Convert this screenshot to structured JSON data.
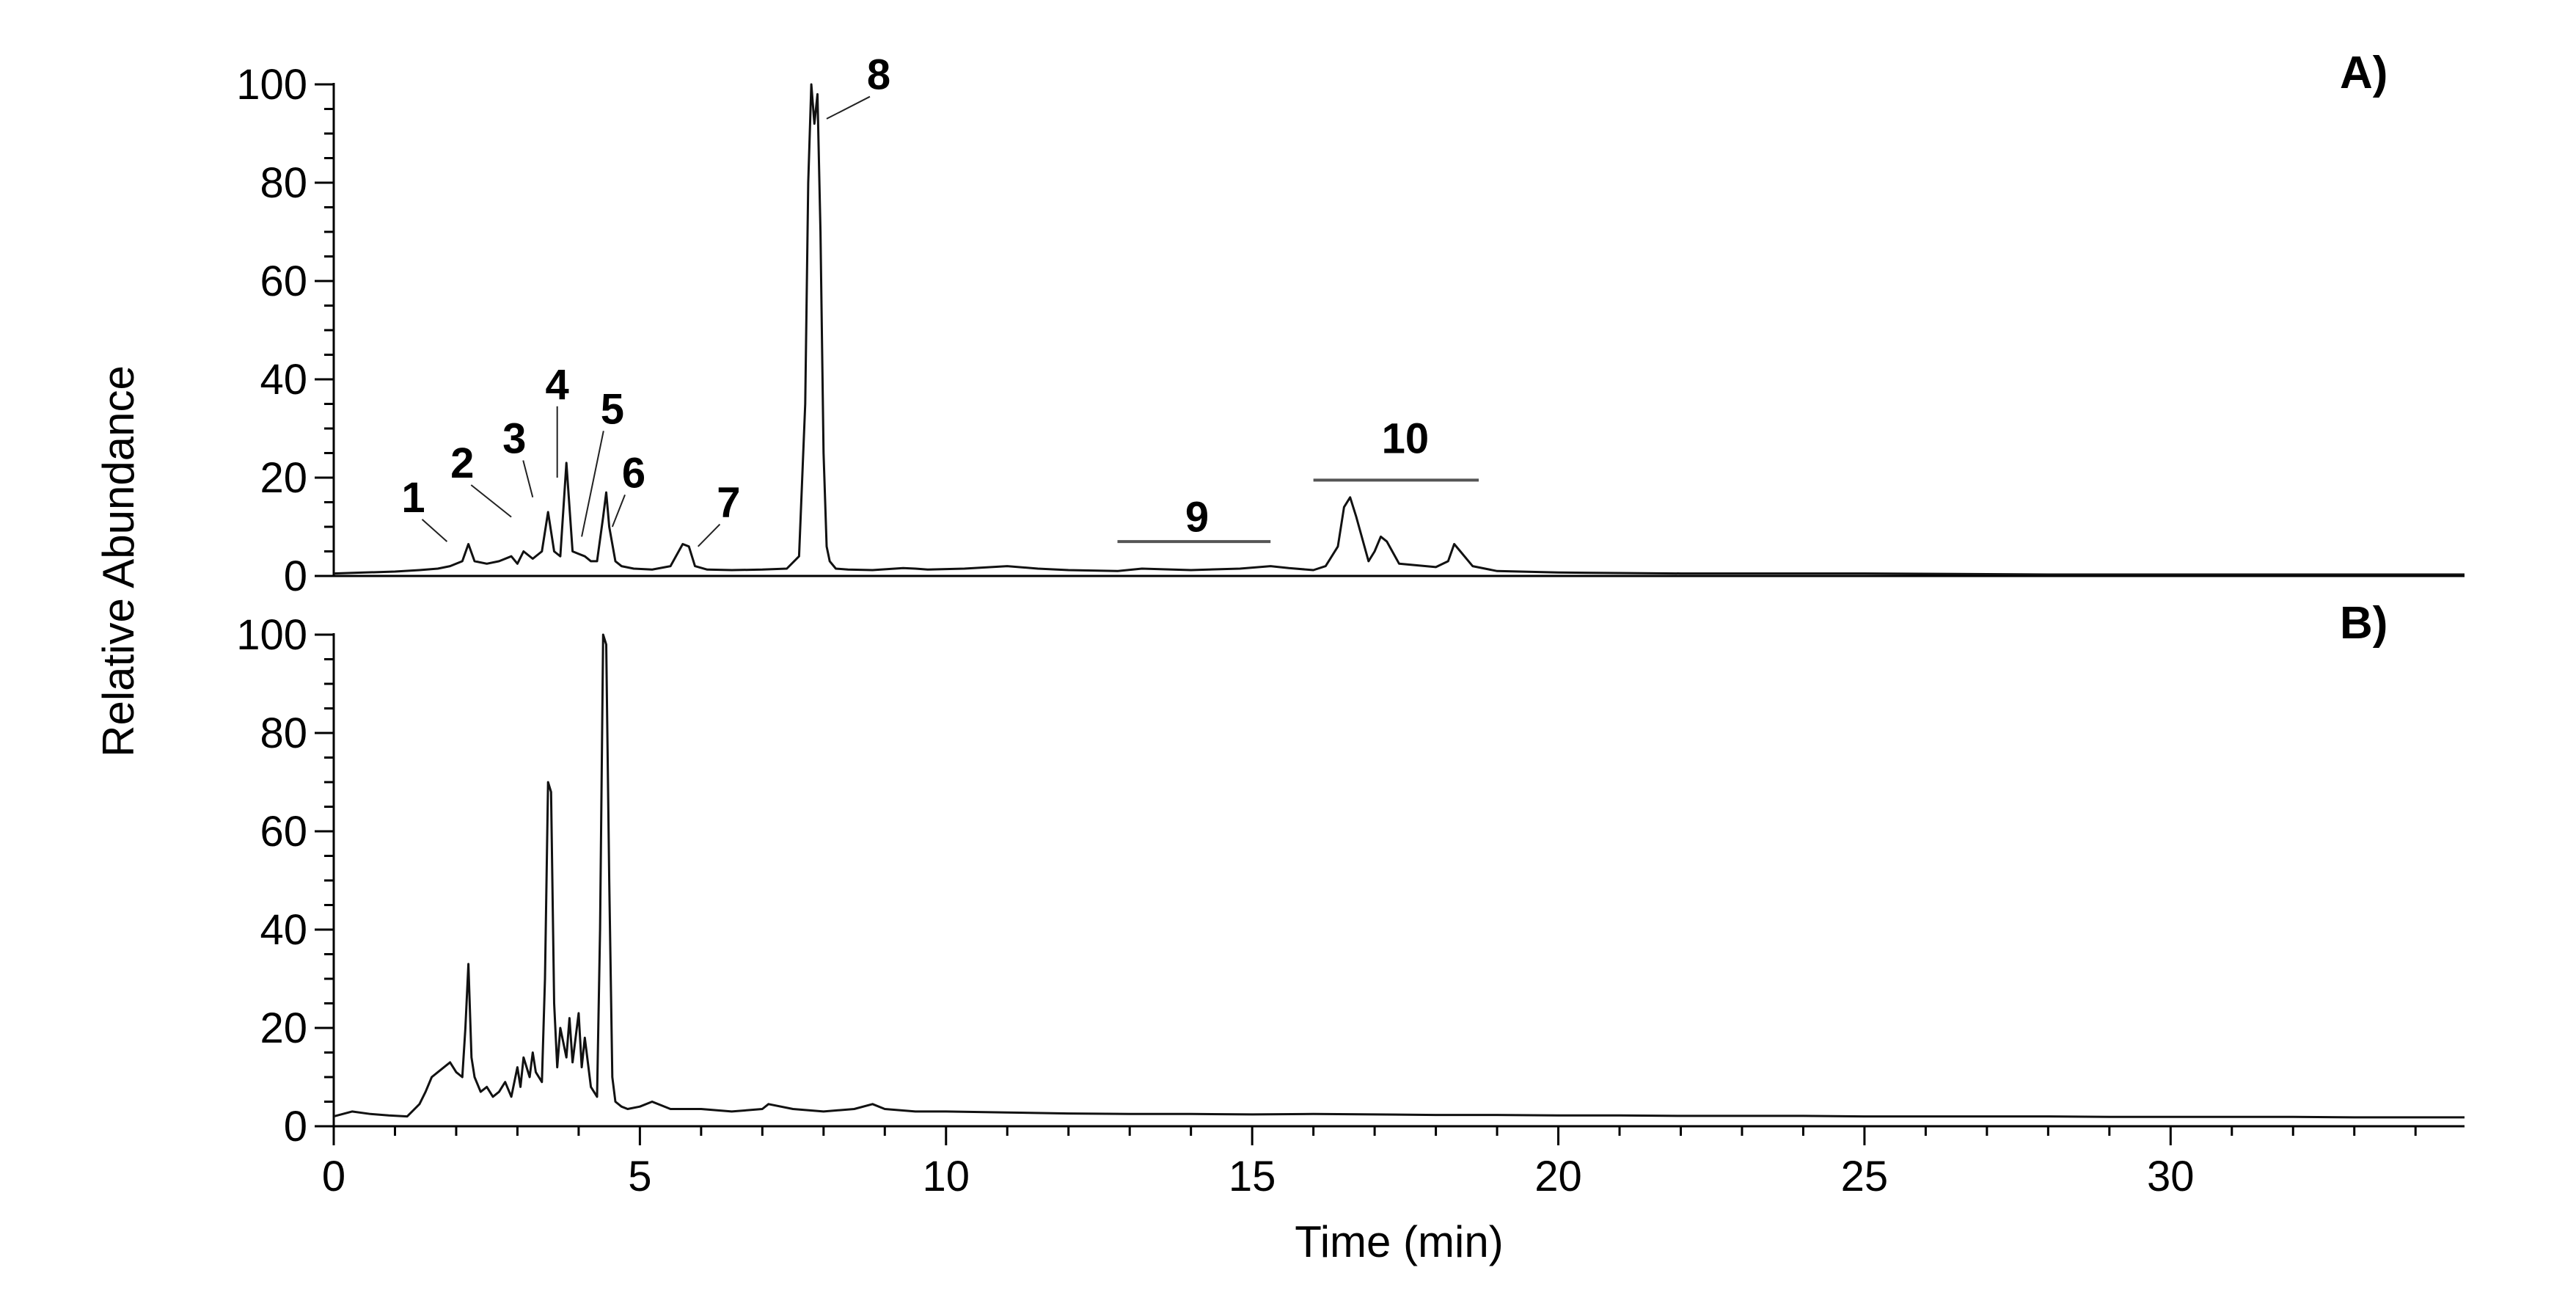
{
  "chart_data": [
    {
      "type": "line",
      "panel_label": "A)",
      "xlim": [
        0,
        34.8
      ],
      "ylim": [
        0,
        100
      ],
      "yticks": [
        "0",
        "20",
        "40",
        "60",
        "80",
        "100"
      ],
      "ylabel": "Relative Abundance",
      "series": [
        {
          "x": [
            0,
            0.5,
            1.0,
            1.4,
            1.7,
            1.9,
            2.1,
            2.2,
            2.3,
            2.5,
            2.7,
            2.9,
            3.0,
            3.1,
            3.25,
            3.4,
            3.5,
            3.6,
            3.7,
            3.8,
            3.9,
            4.0,
            4.1,
            4.2,
            4.3,
            4.4,
            4.45,
            4.5,
            4.6,
            4.7,
            4.9,
            5.2,
            5.5,
            5.7,
            5.8,
            5.9,
            6.1,
            6.5,
            7.0,
            7.4,
            7.6,
            7.7,
            7.75,
            7.8,
            7.85,
            7.9,
            7.95,
            8.0,
            8.05,
            8.1,
            8.2,
            8.4,
            8.8,
            9.3,
            9.5,
            9.7,
            10.3,
            11.0,
            11.5,
            12.0,
            12.8,
            13.2,
            14.0,
            14.8,
            15.3,
            15.6,
            16.0,
            16.2,
            16.4,
            16.5,
            16.6,
            16.7,
            16.9,
            17.0,
            17.1,
            17.2,
            17.4,
            18.0,
            18.2,
            18.3,
            18.4,
            18.6,
            19.0,
            20.0,
            22.0,
            25.0,
            28.0,
            31.0,
            34.8
          ],
          "y": [
            0.5,
            0.7,
            0.9,
            1.2,
            1.5,
            2.0,
            3.0,
            6.5,
            3.0,
            2.5,
            3.0,
            4.0,
            2.5,
            5.0,
            3.5,
            5.0,
            13.0,
            5.0,
            4.0,
            23.0,
            5.0,
            4.5,
            4.0,
            3.0,
            3.0,
            12.0,
            17.0,
            10.0,
            3.0,
            2.0,
            1.5,
            1.3,
            2.0,
            6.5,
            6.0,
            2.0,
            1.3,
            1.2,
            1.3,
            1.5,
            4.0,
            35.0,
            80.0,
            100.0,
            92.0,
            98.0,
            70.0,
            25.0,
            6.0,
            3.0,
            1.5,
            1.3,
            1.2,
            1.6,
            1.5,
            1.3,
            1.5,
            2.0,
            1.5,
            1.2,
            1.0,
            1.5,
            1.2,
            1.5,
            2.0,
            1.6,
            1.2,
            2.0,
            6.0,
            14.0,
            16.0,
            12.0,
            3.0,
            5.0,
            8.0,
            7.0,
            2.5,
            1.8,
            3.0,
            6.5,
            5.0,
            2.0,
            1.0,
            0.7,
            0.5,
            0.5,
            0.3,
            0.3,
            0.3
          ]
        }
      ],
      "annotations": [
        {
          "text": "1",
          "x": 1.3,
          "y": 13.0,
          "tip_x": 1.85,
          "tip_y": 7.0
        },
        {
          "text": "2",
          "x": 2.1,
          "y": 20.0,
          "tip_x": 2.9,
          "tip_y": 12.0
        },
        {
          "text": "3",
          "x": 2.95,
          "y": 25.0,
          "tip_x": 3.25,
          "tip_y": 16.0
        },
        {
          "text": "4",
          "x": 3.65,
          "y": 36.0,
          "tip_x": 3.65,
          "tip_y": 20.0
        },
        {
          "text": "5",
          "x": 4.55,
          "y": 31.0,
          "tip_x": 4.05,
          "tip_y": 8.0
        },
        {
          "text": "6",
          "x": 4.9,
          "y": 18.0,
          "tip_x": 4.55,
          "tip_y": 10.0
        },
        {
          "text": "7",
          "x": 6.45,
          "y": 12.0,
          "tip_x": 5.95,
          "tip_y": 6.0
        },
        {
          "text": "8",
          "x": 8.9,
          "y": 99.0,
          "tip_x": 8.05,
          "tip_y": 93.0
        },
        {
          "text": "9",
          "x": 14.1,
          "y": 9.0,
          "bar_x": [
            12.8,
            15.3
          ],
          "bar_y": 7.0
        },
        {
          "text": "10",
          "x": 17.5,
          "y": 25.0,
          "bar_x": [
            16.0,
            18.7
          ],
          "bar_y": 19.5
        }
      ]
    },
    {
      "type": "line",
      "panel_label": "B)",
      "xlim": [
        0,
        34.8
      ],
      "ylim": [
        0,
        100
      ],
      "yticks": [
        "0",
        "20",
        "40",
        "60",
        "80",
        "100"
      ],
      "xticks": [
        "0",
        "5",
        "10",
        "15",
        "20",
        "25",
        "30"
      ],
      "xlabel": "Time (min)",
      "series": [
        {
          "x": [
            0,
            0.3,
            0.6,
            0.9,
            1.2,
            1.4,
            1.5,
            1.6,
            1.7,
            1.8,
            1.9,
            2.0,
            2.1,
            2.15,
            2.2,
            2.25,
            2.3,
            2.4,
            2.5,
            2.6,
            2.7,
            2.8,
            2.9,
            3.0,
            3.05,
            3.1,
            3.2,
            3.25,
            3.3,
            3.4,
            3.45,
            3.5,
            3.55,
            3.6,
            3.65,
            3.7,
            3.8,
            3.85,
            3.9,
            4.0,
            4.05,
            4.1,
            4.2,
            4.3,
            4.35,
            4.4,
            4.45,
            4.5,
            4.55,
            4.6,
            4.7,
            4.8,
            5.0,
            5.2,
            5.5,
            6.0,
            6.5,
            7.0,
            7.1,
            7.5,
            8.0,
            8.5,
            8.8,
            9.0,
            9.5,
            10.0,
            11.0,
            12.0,
            13.0,
            14.0,
            15.0,
            16.0,
            17.0,
            18.0,
            19.0,
            20.0,
            21.0,
            22.0,
            23.0,
            24.0,
            25.0,
            26.0,
            27.0,
            28.0,
            29.0,
            30.0,
            31.0,
            32.0,
            33.0,
            34.0,
            34.8
          ],
          "y": [
            2.0,
            3.0,
            2.5,
            2.2,
            2.0,
            4.5,
            7.0,
            10.0,
            11.0,
            12.0,
            13.0,
            11.0,
            10.0,
            20.0,
            33.0,
            14.0,
            10.0,
            7.0,
            8.0,
            6.0,
            7.0,
            9.0,
            6.0,
            12.0,
            8.0,
            14.0,
            10.0,
            15.0,
            11.0,
            9.0,
            30.0,
            70.0,
            68.0,
            25.0,
            12.0,
            20.0,
            14.0,
            22.0,
            13.0,
            23.0,
            12.0,
            18.0,
            8.0,
            6.0,
            40.0,
            100.0,
            98.0,
            50.0,
            10.0,
            5.0,
            4.0,
            3.5,
            4.0,
            5.0,
            3.5,
            3.5,
            3.0,
            3.5,
            4.5,
            3.5,
            3.0,
            3.5,
            4.5,
            3.5,
            3.0,
            3.0,
            2.8,
            2.6,
            2.5,
            2.5,
            2.4,
            2.5,
            2.4,
            2.3,
            2.3,
            2.2,
            2.2,
            2.1,
            2.1,
            2.1,
            2.0,
            2.0,
            2.0,
            2.0,
            1.9,
            1.9,
            1.9,
            1.9,
            1.8,
            1.8,
            1.8
          ]
        }
      ]
    }
  ]
}
